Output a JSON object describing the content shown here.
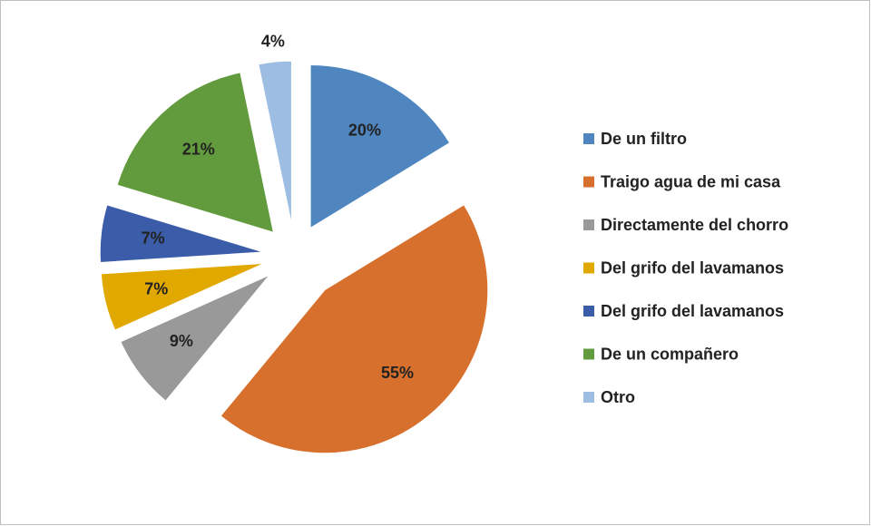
{
  "chart_data": {
    "type": "pie",
    "categories": [
      "De un filtro",
      "Traigo agua de mi casa",
      "Directamente del chorro",
      "Del grifo del lavamanos",
      "Del grifo del lavamanos",
      "De un compañero",
      "Otro"
    ],
    "values": [
      20,
      55,
      9,
      7,
      7,
      21,
      4
    ],
    "value_labels": [
      "20%",
      "55%",
      "9%",
      "7%",
      "7%",
      "21%",
      "4%"
    ],
    "colors": [
      "#4f86c0",
      "#d8702d",
      "#999999",
      "#e1a900",
      "#3b5ca8",
      "#629b3d",
      "#9dbde3"
    ],
    "legend": "right"
  }
}
